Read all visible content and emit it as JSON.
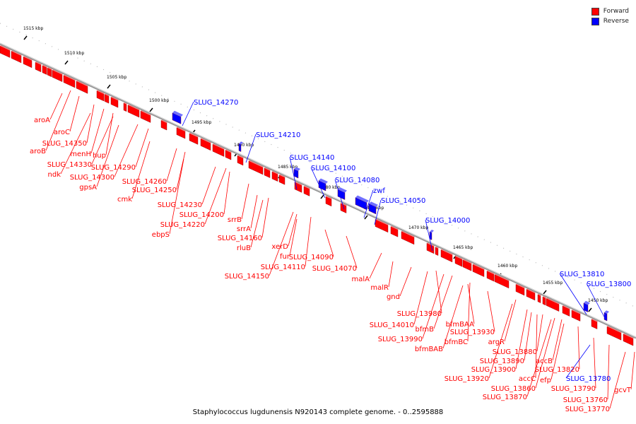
{
  "colors": {
    "forward": "#ff0000",
    "reverse": "#0000ff",
    "backbone": "#888888"
  },
  "legend": [
    {
      "label": "Forward",
      "color": "#ff0000"
    },
    {
      "label": "Reverse",
      "color": "#0000ff"
    }
  ],
  "caption": "Staphylococcus lugdunensis N920143 complete genome. - 0..2595888",
  "ticks": [
    "1515 kbp",
    "1510 kbp",
    "1505 kbp",
    "1500 kbp",
    "1495 kbp",
    "1490 kbp",
    "1485 kbp",
    "1480 kbp",
    "1475 kbp",
    "1470 kbp",
    "1465 kbp",
    "1460 kbp",
    "1455 kbp",
    "1450 kbp"
  ],
  "forward_labels": [
    "aroA",
    "aroC",
    "aroB",
    "SLUG_14350",
    "menH",
    "hup",
    "ndk",
    "SLUG_14330",
    "SLUG_14290",
    "SLUG_14300",
    "gpsA",
    "SLUG_14260",
    "SLUG_14250",
    "cmk",
    "SLUG_14230",
    "SLUG_14200",
    "SLUG_14220",
    "ebpS",
    "srrB",
    "srrA",
    "SLUG_14160",
    "rluB",
    "xerD",
    "fur",
    "SLUG_14090",
    "SLUG_14110",
    "SLUG_14150",
    "SLUG_14070",
    "malA",
    "malR",
    "gnd",
    "SLUG_13980",
    "SLUG_14010",
    "bfmB",
    "bfmBAA",
    "SLUG_13990",
    "bfmBC",
    "bfmBAB",
    "SLUG_13930",
    "argR",
    "SLUG_13880",
    "SLUG_13890",
    "SLUG_13900",
    "accB",
    "SLUG_13920",
    "accC",
    "efp",
    "SLUG_13820",
    "SLUG_13860",
    "SLUG_13870",
    "SLUG_13790",
    "SLUG_13760",
    "gcvT",
    "SLUG_13770"
  ],
  "reverse_labels": [
    "SLUG_14270",
    "SLUG_14210",
    "SLUG_14140",
    "SLUG_14100",
    "SLUG_14080",
    "zwf",
    "SLUG_14050",
    "SLUG_14000",
    "SLUG_13810",
    "SLUG_13800",
    "SLUG_13780"
  ]
}
